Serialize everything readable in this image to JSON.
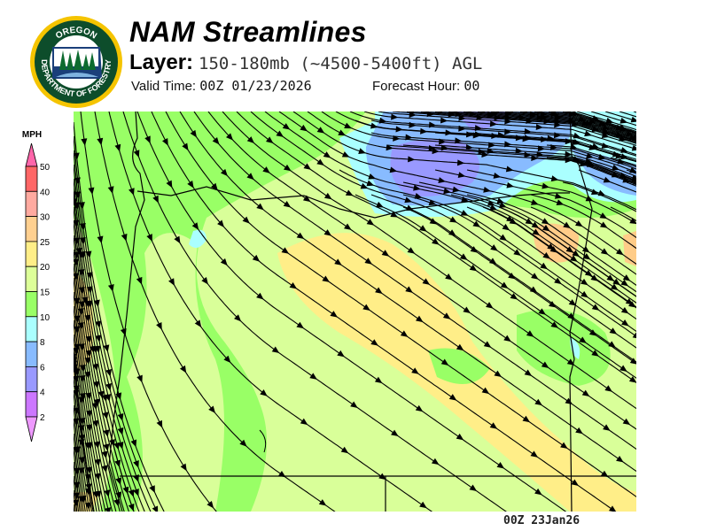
{
  "header": {
    "title": "NAM Streamlines",
    "layer_label": "Layer:",
    "layer_value": "150-180mb (~4500-5400ft) AGL",
    "valid_label": "Valid Time:",
    "valid_value": "00Z 01/23/2026",
    "forecast_label": "Forecast Hour:",
    "forecast_value": "00"
  },
  "logo": {
    "top_text": "OREGON",
    "bottom_text": "DEPARTMENT OF FORESTRY",
    "colors": {
      "ring": "#f5c400",
      "field": "#0d4d2b",
      "water": "#1a3f7a"
    }
  },
  "legend": {
    "unit": "MPH",
    "ticks": [
      "50",
      "40",
      "30",
      "25",
      "20",
      "15",
      "10",
      "8",
      "6",
      "4",
      "2"
    ],
    "colors": [
      "#ff66aa",
      "#ff6666",
      "#ffaaa0",
      "#ffd090",
      "#ffee88",
      "#ddff99",
      "#99ff66",
      "#aaffff",
      "#88bbff",
      "#9999ff",
      "#cc77ff",
      "#ee99ff"
    ]
  },
  "map": {
    "field_colors": {
      "light_green": "#d9ff99",
      "green": "#99ff66",
      "yellow": "#ffee88",
      "orange": "#ffcc88",
      "cyan": "#aaffff",
      "blue": "#88bbff",
      "purple": "#9999ff"
    },
    "streamline_color": "#000000"
  },
  "footer": {
    "timestamp": "00Z 23Jan26"
  }
}
